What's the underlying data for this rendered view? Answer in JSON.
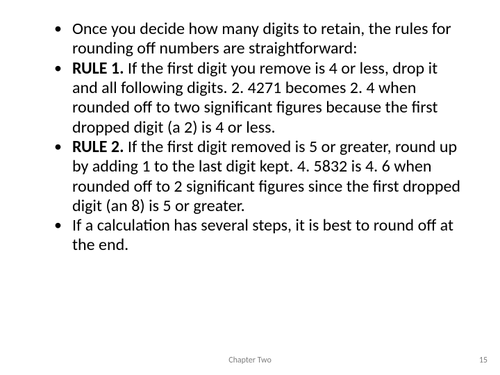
{
  "slide": {
    "bullets": [
      {
        "intro": "Once you decide how many digits to retain, the rules for rounding off numbers are straightforward:"
      },
      {
        "rule_label": "RULE 1. ",
        "rule_text": "If the first digit you remove is 4 or less, drop it and all following digits. 2. 4271 becomes 2. 4 when rounded off to two significant figures because the first dropped digit (a 2) is 4 or less."
      },
      {
        "rule_label": "RULE 2. ",
        "rule_text": "If the first digit removed is 5 or greater, round up by adding 1 to the last digit kept. 4. 5832 is 4. 6 when rounded off to 2 significant figures since the first dropped digit (an 8) is 5 or greater."
      },
      {
        "closing": "If a calculation has several steps, it is best to round off at the end."
      }
    ],
    "footer": {
      "center": "Chapter Two",
      "page": "15"
    },
    "colors": {
      "text": "#000000",
      "footer": "#7f7f7f",
      "background": "#ffffff"
    },
    "font_sizes": {
      "body_pt": 24,
      "footer_pt": 12
    }
  }
}
